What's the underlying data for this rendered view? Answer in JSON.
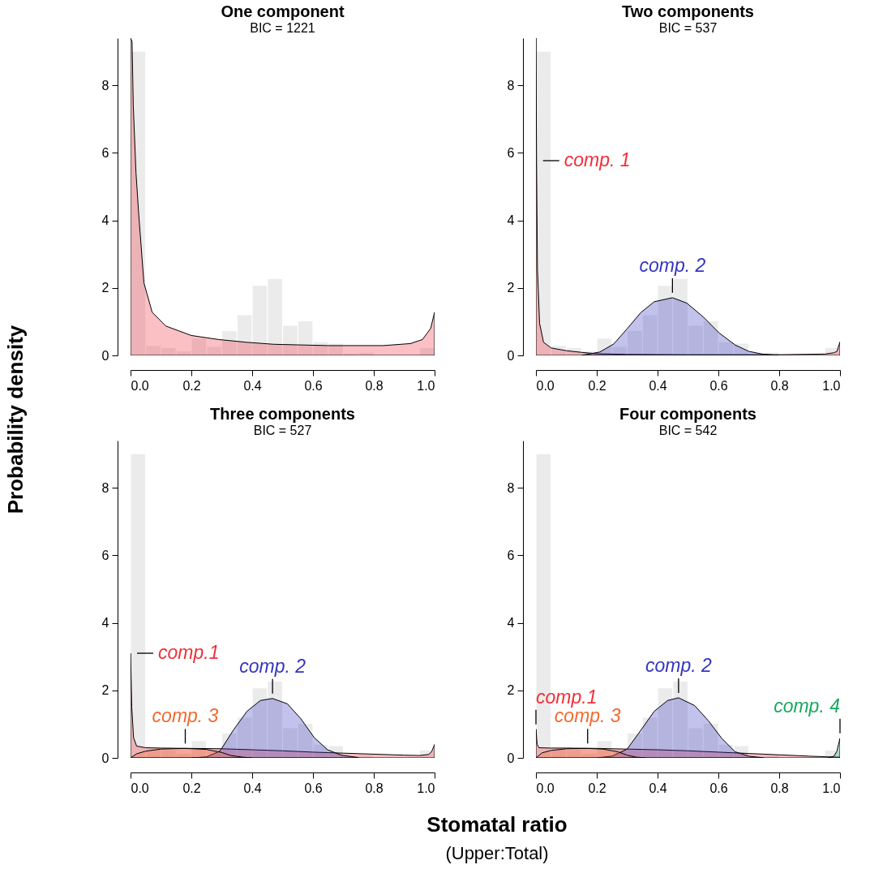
{
  "chart_data": [
    {
      "type": "histogram",
      "title": "One component",
      "subtitle": "BIC = 1221",
      "ylabel": "Probability density",
      "color": "#ebebeb",
      "bins": [
        0,
        0.05,
        0.1,
        0.15,
        0.2,
        0.25,
        0.3,
        0.35,
        0.4,
        0.45,
        0.5,
        0.55,
        0.6,
        0.65,
        0.7,
        0.75,
        0.8,
        0.85,
        0.9,
        0.95,
        1.0
      ],
      "values": [
        9.0,
        0.28,
        0.22,
        0.12,
        0.5,
        0.25,
        0.72,
        1.19,
        2.06,
        2.26,
        0.88,
        1.01,
        0.39,
        0.35,
        0.05,
        0.08,
        0,
        0,
        0,
        0.22
      ],
      "xlim": [
        0,
        1
      ],
      "ylim": [
        0,
        9.4
      ],
      "xticks": [
        {
          "value": 0,
          "label": "0.0"
        },
        {
          "value": 0.2,
          "label": "0.2"
        },
        {
          "value": 0.4,
          "label": "0.4"
        },
        {
          "value": 0.6,
          "label": "0.6"
        },
        {
          "value": 0.8,
          "label": "0.8"
        },
        {
          "value": 1,
          "label": "1.0"
        }
      ],
      "yticks": [
        0,
        2,
        4,
        6,
        8
      ],
      "grid": false,
      "series": [
        {
          "type": "area",
          "color": "#f0303a",
          "x": [
            0,
            0.005,
            0.009,
            0.018,
            0.027,
            0.044,
            0.071,
            0.116,
            0.2,
            0.29,
            0.38,
            0.47,
            0.65,
            0.83,
            0.92,
            0.96,
            0.987,
            1.0
          ],
          "values": [
            9.4,
            9.3,
            7.4,
            5.4,
            4.17,
            2.15,
            1.28,
            0.87,
            0.59,
            0.47,
            0.39,
            0.33,
            0.29,
            0.29,
            0.35,
            0.47,
            0.8,
            1.28
          ]
        }
      ]
    },
    {
      "type": "histogram",
      "title": "Two components",
      "subtitle": "BIC = 537",
      "color": "#ebebeb",
      "bins": [
        0,
        0.05,
        0.1,
        0.15,
        0.2,
        0.25,
        0.3,
        0.35,
        0.4,
        0.45,
        0.5,
        0.55,
        0.6,
        0.65,
        0.7,
        0.75,
        0.8,
        0.85,
        0.9,
        0.95,
        1.0
      ],
      "values": [
        9.0,
        0.28,
        0.22,
        0.12,
        0.5,
        0.25,
        0.72,
        1.19,
        2.06,
        2.26,
        0.88,
        1.01,
        0.39,
        0.35,
        0.05,
        0.08,
        0,
        0,
        0,
        0.22
      ],
      "xlim": [
        0,
        1
      ],
      "ylim": [
        0,
        9.4
      ],
      "xticks": [
        {
          "value": 0,
          "label": "0.0"
        },
        {
          "value": 0.2,
          "label": "0.2"
        },
        {
          "value": 0.4,
          "label": "0.4"
        },
        {
          "value": 0.6,
          "label": "0.6"
        },
        {
          "value": 0.8,
          "label": "0.8"
        },
        {
          "value": 1,
          "label": "1.0"
        }
      ],
      "yticks": [
        0,
        2,
        4,
        6,
        8
      ],
      "grid": false,
      "series": [
        {
          "type": "area",
          "color": "#f0303a",
          "x": [
            0,
            0.002,
            0.005,
            0.012,
            0.025,
            0.05,
            0.1,
            0.15,
            0.2,
            0.3,
            0.5,
            0.8,
            0.95,
            0.98,
            0.99,
            1.0
          ],
          "values": [
            9.4,
            5.77,
            2.55,
            0.95,
            0.39,
            0.22,
            0.14,
            0.09,
            0.05,
            0.03,
            0.02,
            0.02,
            0.04,
            0.08,
            0.12,
            0.4
          ]
        },
        {
          "type": "area",
          "color": "#3535c0",
          "x": [
            0.15,
            0.21,
            0.256,
            0.3,
            0.345,
            0.389,
            0.449,
            0.496,
            0.549,
            0.602,
            0.655,
            0.7,
            0.744,
            0.8
          ],
          "values": [
            0,
            0.1,
            0.34,
            0.79,
            1.27,
            1.59,
            1.71,
            1.55,
            1.15,
            0.67,
            0.31,
            0.12,
            0.04,
            0
          ]
        }
      ],
      "annotations": [
        {
          "text": "comp. 1",
          "x": 0.002,
          "y": 5.77
        },
        {
          "text": "comp. 2",
          "x": 0.449,
          "y": 1.71
        }
      ]
    },
    {
      "type": "histogram",
      "title": "Three components",
      "subtitle": "BIC = 527",
      "xlabel": "Stomatal ratio",
      "color": "#ebebeb",
      "bins": [
        0,
        0.05,
        0.1,
        0.15,
        0.2,
        0.25,
        0.3,
        0.35,
        0.4,
        0.45,
        0.5,
        0.55,
        0.6,
        0.65,
        0.7,
        0.75,
        0.8,
        0.85,
        0.9,
        0.95,
        1.0
      ],
      "values": [
        9.0,
        0.28,
        0.22,
        0.12,
        0.5,
        0.25,
        0.72,
        1.19,
        2.06,
        2.26,
        0.88,
        1.01,
        0.39,
        0.35,
        0.05,
        0.08,
        0,
        0,
        0,
        0.22
      ],
      "xlim": [
        0,
        1
      ],
      "ylim": [
        0,
        9.4
      ],
      "xticks": [
        {
          "value": 0,
          "label": "0.0"
        },
        {
          "value": 0.2,
          "label": "0.2"
        },
        {
          "value": 0.4,
          "label": "0.4"
        },
        {
          "value": 0.6,
          "label": "0.6"
        },
        {
          "value": 0.8,
          "label": "0.8"
        },
        {
          "value": 1,
          "label": "1.0"
        }
      ],
      "yticks": [
        0,
        2,
        4,
        6,
        8
      ],
      "grid": false,
      "series": [
        {
          "type": "area",
          "color": "#f0303a",
          "x": [
            0,
            0.004,
            0.01,
            0.02,
            0.05,
            0.1,
            0.2,
            0.3,
            0.4,
            0.5,
            0.6,
            0.7,
            0.8,
            0.9,
            0.95,
            0.98,
            0.99,
            1.0
          ],
          "values": [
            3.1,
            1.5,
            0.6,
            0.35,
            0.3,
            0.29,
            0.28,
            0.27,
            0.24,
            0.21,
            0.17,
            0.14,
            0.11,
            0.08,
            0.07,
            0.1,
            0.18,
            0.4
          ]
        },
        {
          "type": "area",
          "color": "#3535c0",
          "x": [
            0.2,
            0.25,
            0.294,
            0.338,
            0.383,
            0.427,
            0.467,
            0.516,
            0.56,
            0.604,
            0.648,
            0.693,
            0.75
          ],
          "values": [
            0,
            0.03,
            0.2,
            0.82,
            1.38,
            1.7,
            1.76,
            1.6,
            1.16,
            0.6,
            0.24,
            0.08,
            0.01
          ]
        },
        {
          "type": "area",
          "color": "#f26a30",
          "x": [
            0,
            0.02,
            0.05,
            0.1,
            0.18,
            0.25,
            0.3,
            0.33,
            0.37,
            0.4
          ],
          "values": [
            0,
            0.12,
            0.2,
            0.26,
            0.28,
            0.25,
            0.16,
            0.07,
            0.02,
            0
          ]
        }
      ],
      "annotations": [
        {
          "text": "comp.1",
          "x": 0,
          "y": 3.1
        },
        {
          "text": "comp. 2",
          "x": 0.467,
          "y": 1.76
        },
        {
          "text": "comp. 3",
          "x": 0.18,
          "y": 0.28
        },
        "(Upper:Total)"
      ]
    },
    {
      "type": "histogram",
      "title": "Four components",
      "subtitle": "BIC = 542",
      "color": "#ebebeb",
      "bins": [
        0,
        0.05,
        0.1,
        0.15,
        0.2,
        0.25,
        0.3,
        0.35,
        0.4,
        0.45,
        0.5,
        0.55,
        0.6,
        0.65,
        0.7,
        0.75,
        0.8,
        0.85,
        0.9,
        0.95,
        1.0
      ],
      "values": [
        9.0,
        0.28,
        0.22,
        0.12,
        0.5,
        0.25,
        0.72,
        1.19,
        2.06,
        2.26,
        0.88,
        1.01,
        0.39,
        0.35,
        0.05,
        0.08,
        0,
        0,
        0,
        0.22
      ],
      "xlim": [
        0,
        1
      ],
      "ylim": [
        0,
        9.4
      ],
      "xticks": [
        {
          "value": 0,
          "label": "0.0"
        },
        {
          "value": 0.2,
          "label": "0.2"
        },
        {
          "value": 0.4,
          "label": "0.4"
        },
        {
          "value": 0.6,
          "label": "0.6"
        },
        {
          "value": 0.8,
          "label": "0.8"
        },
        {
          "value": 1,
          "label": "1.0"
        }
      ],
      "yticks": [
        0,
        2,
        4,
        6,
        8
      ],
      "grid": false,
      "series": [
        {
          "type": "area",
          "color": "#f0303a",
          "x": [
            0,
            0.004,
            0.01,
            0.05,
            0.1,
            0.2,
            0.3,
            0.4,
            0.5,
            0.6,
            0.7,
            0.8,
            0.9,
            0.96,
            1.0
          ],
          "values": [
            0.85,
            0.4,
            0.3,
            0.29,
            0.29,
            0.28,
            0.26,
            0.24,
            0.21,
            0.17,
            0.13,
            0.09,
            0.05,
            0.03,
            0.02
          ]
        },
        {
          "type": "area",
          "color": "#3535c0",
          "x": [
            0.2,
            0.25,
            0.3,
            0.345,
            0.389,
            0.433,
            0.469,
            0.522,
            0.567,
            0.611,
            0.655,
            0.7,
            0.75
          ],
          "values": [
            0,
            0.05,
            0.26,
            0.82,
            1.38,
            1.7,
            1.78,
            1.55,
            1.1,
            0.58,
            0.18,
            0.05,
            0
          ]
        },
        {
          "type": "area",
          "color": "#f26a30",
          "x": [
            0,
            0.02,
            0.05,
            0.1,
            0.17,
            0.22,
            0.27,
            0.3,
            0.33,
            0.36
          ],
          "values": [
            0,
            0.15,
            0.22,
            0.27,
            0.28,
            0.26,
            0.18,
            0.08,
            0.02,
            0
          ]
        },
        {
          "type": "area",
          "color": "#1aa860",
          "x": [
            0.96,
            0.98,
            0.99,
            0.995,
            1.0
          ],
          "values": [
            0,
            0.05,
            0.2,
            0.4,
            0.58
          ]
        }
      ],
      "annotations": [
        {
          "text": "comp.1",
          "x": 0,
          "y": 0.85
        },
        {
          "text": "comp. 2",
          "x": 0.469,
          "y": 1.78
        },
        {
          "text": "comp. 3",
          "x": 0.17,
          "y": 0.28
        },
        {
          "text": "comp. 4",
          "x": 1.0,
          "y": 0.58
        }
      ]
    }
  ]
}
